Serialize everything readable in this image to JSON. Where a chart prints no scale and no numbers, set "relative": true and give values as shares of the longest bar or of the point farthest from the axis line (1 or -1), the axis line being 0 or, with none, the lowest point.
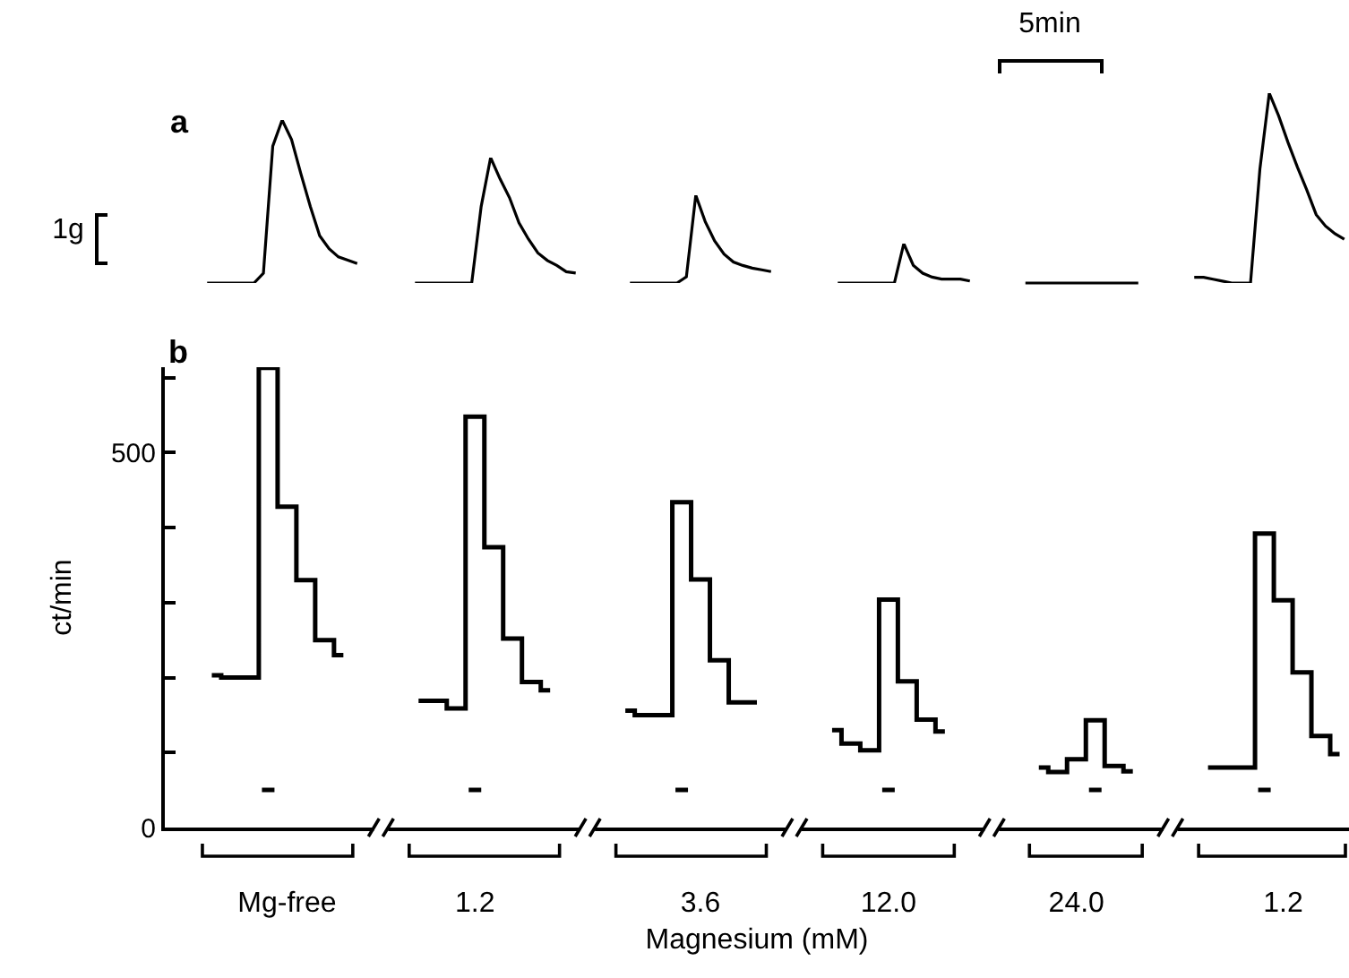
{
  "chart_data": [
    {
      "type": "line",
      "title": "a",
      "relative": true,
      "annotations": [
        "1g",
        "5min"
      ],
      "categories": [
        null,
        null,
        null,
        null,
        null,
        null,
        null,
        null,
        null,
        null,
        null,
        null,
        null,
        null,
        null,
        null,
        null
      ],
      "series": [
        {
          "color": "#000000",
          "values": [
            0,
            0,
            0,
            0,
            0,
            0,
            0.06,
            0.84,
            1,
            0.88,
            0.67,
            0.47,
            0.29,
            0.21,
            0.16,
            0.14,
            0.12
          ]
        }
      ]
    },
    {
      "type": "line",
      "relative": true,
      "categories": [
        null,
        null,
        null,
        null,
        null,
        null,
        null,
        null,
        null,
        null,
        null,
        null,
        null,
        null,
        null,
        null,
        null,
        null
      ],
      "series": [
        {
          "color": "#000000",
          "values": [
            0,
            0,
            0,
            0,
            0,
            0,
            0,
            0.61,
            1,
            0.83,
            0.68,
            0.48,
            0.35,
            0.24,
            0.18,
            0.14,
            0.09,
            0.08
          ]
        }
      ]
    },
    {
      "type": "line",
      "relative": true,
      "categories": [
        null,
        null,
        null,
        null,
        null,
        null,
        null,
        null,
        null,
        null,
        null,
        null,
        null,
        null,
        null,
        null
      ],
      "series": [
        {
          "color": "#000000",
          "values": [
            0,
            0,
            0,
            0,
            0,
            0,
            0.07,
            1,
            0.7,
            0.48,
            0.33,
            0.24,
            0.2,
            0.17,
            0.15,
            0.13
          ]
        }
      ]
    },
    {
      "type": "line",
      "relative": true,
      "categories": [
        null,
        null,
        null,
        null,
        null,
        null,
        null,
        null,
        null,
        null,
        null,
        null,
        null,
        null,
        null
      ],
      "series": [
        {
          "color": "#000000",
          "values": [
            0,
            0,
            0,
            0,
            0,
            0,
            0,
            1,
            0.45,
            0.25,
            0.15,
            0.1,
            0.1,
            0.1,
            0.05
          ]
        }
      ]
    },
    {
      "type": "line",
      "relative": true,
      "categories": [
        null,
        null,
        null,
        null,
        null,
        null,
        null,
        null,
        null,
        null,
        null,
        null,
        null,
        null,
        null,
        null,
        null
      ],
      "series": [
        {
          "color": "#000000",
          "values": [
            0.03,
            0.03,
            0.02,
            0.01,
            0,
            0,
            0,
            0.6,
            1,
            0.88,
            0.74,
            0.61,
            0.49,
            0.36,
            0.3,
            0.26,
            0.23
          ]
        }
      ]
    },
    {
      "type": "step",
      "title": "b",
      "xlabel": "Magnesium (mM)",
      "ylabel": "ct/min",
      "categories": [
        null,
        null,
        null,
        null,
        null,
        null,
        "Mg-free",
        null,
        null,
        null,
        null,
        null,
        null,
        null,
        null,
        null,
        "1.2",
        null,
        null,
        null,
        null,
        null,
        null,
        null,
        null,
        null,
        null,
        null,
        "3.6",
        null,
        null,
        null,
        null,
        null,
        null,
        null,
        null,
        null,
        "12.0",
        null,
        null,
        null,
        null,
        null,
        null,
        null,
        null,
        null,
        "24.0",
        null,
        null,
        null,
        null,
        null,
        null,
        null,
        null,
        null,
        null,
        "1.2",
        null,
        null,
        null
      ],
      "ylim": [
        0,
        614
      ],
      "yticks": [
        0,
        {
          "value": 100,
          "label": null
        },
        {
          "value": 200,
          "label": null
        },
        {
          "value": 300,
          "label": null
        },
        {
          "value": 400,
          "label": null
        },
        500,
        {
          "value": 600,
          "label": null
        }
      ],
      "series": [
        {
          "color": "#000000",
          "values": [
            null,
            null,
            203,
            200,
            200,
            613,
            428,
            330,
            250,
            230,
            null,
            null,
            null,
            169,
            169,
            159,
            548,
            374,
            252,
            194,
            183,
            null,
            null,
            null,
            156,
            150,
            150,
            434,
            331,
            223,
            167,
            167,
            null,
            null,
            null,
            130,
            112,
            103,
            304,
            195,
            144,
            128,
            null,
            null,
            null,
            null,
            80,
            74,
            91,
            143,
            82,
            75,
            null,
            null,
            null,
            80,
            80,
            80,
            392,
            303,
            207,
            122,
            98
          ]
        }
      ]
    }
  ]
}
